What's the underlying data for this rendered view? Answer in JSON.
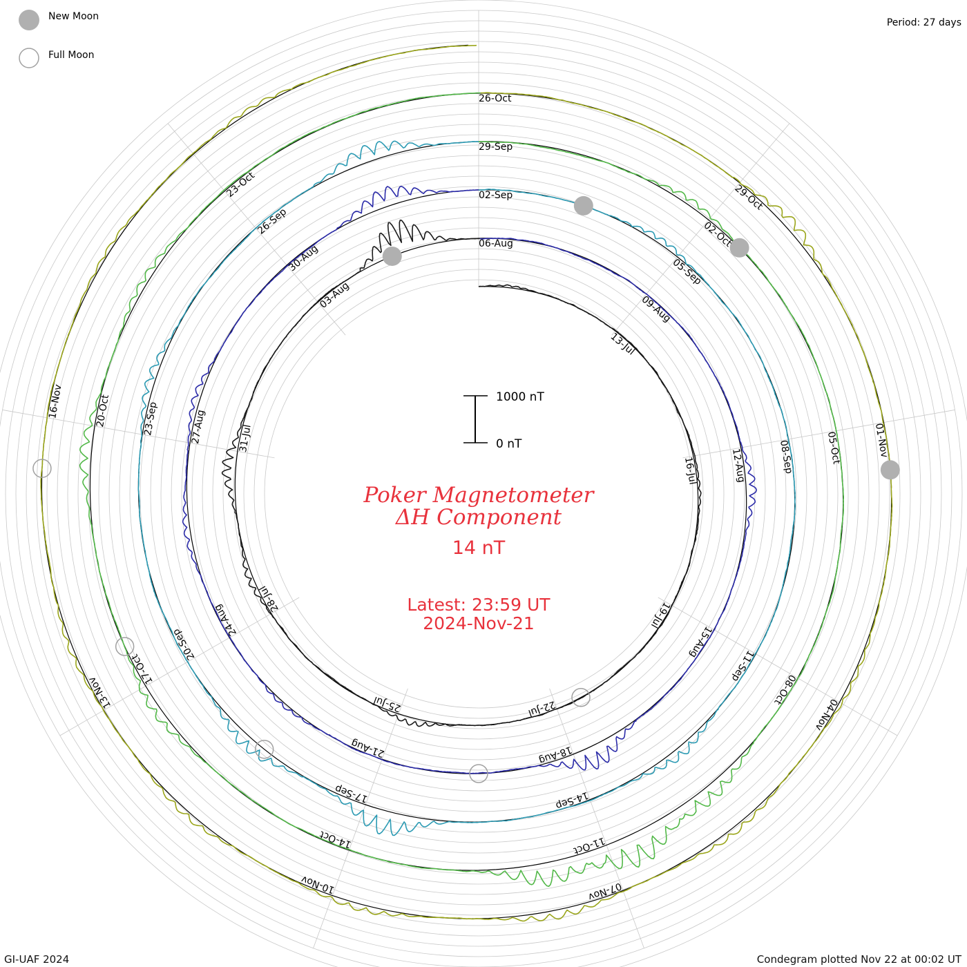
{
  "legend": {
    "new_moon": "New Moon",
    "full_moon": "Full Moon"
  },
  "period": "Period: 27 days",
  "footer": {
    "credit": "GI-UAF 2024",
    "plotted": "Condegram plotted Nov 22 at 00:02 UT"
  },
  "scale": {
    "top": "1000 nT",
    "bottom": "0 nT"
  },
  "center": {
    "title_line1": "Poker Magnetometer",
    "title_line2": "ΔH Component",
    "value": "14 nT",
    "latest_line1": "Latest: 23:59 UT",
    "latest_line2": "2024-Nov-21"
  },
  "colors": {
    "text_red": "#e8323c",
    "ring_grid": "#c8c8c8",
    "baseline": "#000000",
    "new_moon_fill": "#b0b0b0",
    "full_moon_stroke": "#a0a0a0"
  },
  "chart_data": {
    "type": "line",
    "layout": "spiral condegram",
    "start_date": "2024-07-10",
    "end_date": "2024-11-21",
    "period_days": 27,
    "scale_bar_nT": [
      0,
      1000
    ],
    "rotation_colors": [
      "#1a1a1a",
      "#2a2aa8",
      "#2b9ab3",
      "#52b848",
      "#9aa51a",
      "#c8861a",
      "#c0501a",
      "#b81c14"
    ],
    "date_labels": [
      [
        "13-Jul",
        "16-Jul",
        "19-Jul",
        "22-Jul",
        "25-Jul",
        "28-Jul",
        "31-Jul",
        "03-Aug",
        "06-Aug"
      ],
      [
        "09-Aug",
        "12-Aug",
        "15-Aug",
        "18-Aug",
        "21-Aug",
        "24-Aug",
        "27-Aug",
        "30-Aug",
        "02-Sep"
      ],
      [
        "05-Sep",
        "08-Sep",
        "11-Sep",
        "14-Sep",
        "17-Sep",
        "20-Sep",
        "23-Sep",
        "26-Sep",
        "29-Sep"
      ],
      [
        "02-Oct",
        "05-Oct",
        "08-Oct",
        "11-Oct",
        "14-Oct",
        "17-Oct",
        "20-Oct",
        "23-Oct",
        "26-Oct"
      ],
      [
        "29-Oct",
        "01-Nov",
        "04-Nov",
        "07-Nov",
        "10-Nov",
        "13-Nov",
        "16-Nov"
      ]
    ],
    "new_moons": [
      "2024-08-04",
      "2024-09-03",
      "2024-10-02",
      "2024-11-01"
    ],
    "full_moons": [
      "2024-07-21",
      "2024-08-19",
      "2024-09-18",
      "2024-10-17",
      "2024-11-15"
    ],
    "disturbances": [
      {
        "date": "2024-07-10",
        "peak_nT": 40
      },
      {
        "date": "2024-07-16",
        "peak_nT": 60
      },
      {
        "date": "2024-07-24",
        "peak_nT": 150
      },
      {
        "date": "2024-07-28",
        "peak_nT": 150
      },
      {
        "date": "2024-07-30",
        "peak_nT": 300
      },
      {
        "date": "2024-08-04",
        "peak_nT": 700
      },
      {
        "date": "2024-08-12",
        "peak_nT": 200
      },
      {
        "date": "2024-08-17",
        "peak_nT": 500
      },
      {
        "date": "2024-08-22",
        "peak_nT": 100
      },
      {
        "date": "2024-08-25",
        "peak_nT": 120
      },
      {
        "date": "2024-08-27",
        "peak_nT": 150
      },
      {
        "date": "2024-08-31",
        "peak_nT": 400
      },
      {
        "date": "2024-09-04",
        "peak_nT": 150
      },
      {
        "date": "2024-09-12",
        "peak_nT": 250
      },
      {
        "date": "2024-09-16",
        "peak_nT": 500
      },
      {
        "date": "2024-09-18",
        "peak_nT": 300
      },
      {
        "date": "2024-09-23",
        "peak_nT": 200
      },
      {
        "date": "2024-09-27",
        "peak_nT": 350
      },
      {
        "date": "2024-10-01",
        "peak_nT": 150
      },
      {
        "date": "2024-10-09",
        "peak_nT": 350
      },
      {
        "date": "2024-10-10",
        "peak_nT": 700
      },
      {
        "date": "2024-10-11",
        "peak_nT": 500
      },
      {
        "date": "2024-10-16",
        "peak_nT": 200
      },
      {
        "date": "2024-10-19",
        "peak_nT": 250
      },
      {
        "date": "2024-10-21",
        "peak_nT": 150
      },
      {
        "date": "2024-10-29",
        "peak_nT": 250
      },
      {
        "date": "2024-11-03",
        "peak_nT": 100
      },
      {
        "date": "2024-11-05",
        "peak_nT": 150
      },
      {
        "date": "2024-11-07",
        "peak_nT": 200
      },
      {
        "date": "2024-11-09",
        "peak_nT": 150
      },
      {
        "date": "2024-11-11",
        "peak_nT": 150
      },
      {
        "date": "2024-11-13",
        "peak_nT": 120
      },
      {
        "date": "2024-11-17",
        "peak_nT": 80
      },
      {
        "date": "2024-11-19",
        "peak_nT": 100
      }
    ]
  }
}
